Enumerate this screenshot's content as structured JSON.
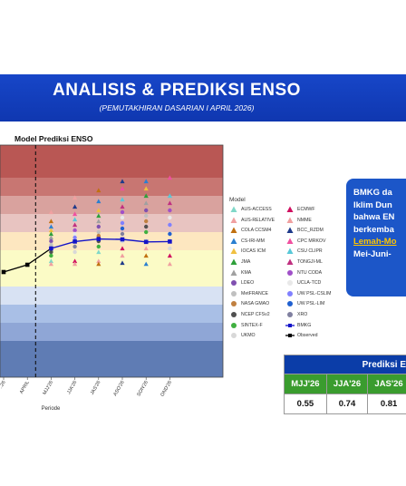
{
  "banner": {
    "title": "ANALISIS & PREDIKSI ENSO",
    "subtitle": "(PEMUTAKHIRAN DASARIAN I APRIL 2026)"
  },
  "chart_title": "Model Prediksi ENSO",
  "chart_data": {
    "type": "line",
    "categories": [
      "..26",
      "APRIL",
      "MJJ'26",
      "JJA'26",
      "JAS'26",
      "ASO'26",
      "SON'26",
      "OND'26"
    ],
    "xlabel": "Periode",
    "series": [
      {
        "name": "BMKG",
        "x": [
          "MJJ'26",
          "JJA'26",
          "JAS'26",
          "ASO'26",
          "SON'26",
          "OND'26"
        ],
        "values": [
          0.55,
          0.74,
          0.81,
          0.8,
          0.73,
          0.74
        ]
      },
      {
        "name": "Observed",
        "x": [
          "..26",
          "APRIL"
        ],
        "values": [
          -0.1,
          0.1
        ]
      }
    ],
    "ensemble_markers": [
      {
        "x": "MJJ'26",
        "values": [
          1.55,
          1.3,
          1.15,
          1.05,
          0.95,
          0.85,
          0.75,
          0.65,
          0.55,
          0.45,
          0.35,
          0.2,
          0.12
        ]
      },
      {
        "x": "JJA'26",
        "values": [
          1.95,
          1.7,
          1.5,
          1.35,
          1.2,
          1.05,
          0.95,
          0.85,
          0.75,
          0.6,
          0.45,
          0.2,
          0.12
        ]
      },
      {
        "x": "JAS'26",
        "values": [
          2.15,
          1.85,
          1.6,
          1.45,
          1.3,
          1.15,
          1.0,
          0.9,
          0.75,
          0.6,
          0.45,
          0.2,
          0.12
        ]
      },
      {
        "x": "ASO'26",
        "values": [
          2.4,
          2.2,
          1.9,
          1.7,
          1.55,
          1.4,
          1.25,
          1.1,
          0.95,
          0.75,
          0.55,
          0.35,
          0.15
        ]
      },
      {
        "x": "SON'26",
        "values": [
          2.4,
          2.2,
          2.0,
          1.8,
          1.6,
          1.45,
          1.3,
          1.15,
          1.0,
          0.75,
          0.55,
          0.35,
          0.12
        ]
      },
      {
        "x": "OND'26",
        "values": [
          2.5,
          2.0,
          1.8,
          1.6,
          1.4,
          1.2,
          0.95,
          0.75,
          0.55,
          0.35,
          0.12
        ]
      }
    ],
    "ylim": [
      -3.0,
      3.4
    ],
    "bands": [
      {
        "from": 2.5,
        "to": 3.4,
        "color": "#b95754"
      },
      {
        "from": 2.0,
        "to": 2.5,
        "color": "#c87672"
      },
      {
        "from": 1.5,
        "to": 2.0,
        "color": "#d9a29e"
      },
      {
        "from": 1.0,
        "to": 1.5,
        "color": "#e8c4c1"
      },
      {
        "from": 0.5,
        "to": 1.0,
        "color": "#fde7c0"
      },
      {
        "from": -0.5,
        "to": 0.5,
        "color": "#fbfbc6"
      },
      {
        "from": -1.0,
        "to": -0.5,
        "color": "#d8e2f3"
      },
      {
        "from": -1.5,
        "to": -1.0,
        "color": "#a9bfe6"
      },
      {
        "from": -2.0,
        "to": -1.5,
        "color": "#8fa6d6"
      },
      {
        "from": -3.0,
        "to": -2.0,
        "color": "#5f7cb4"
      }
    ],
    "legend_position": "right"
  },
  "legend": {
    "heading": "Model",
    "items": [
      {
        "label": "AUS-ACCESS",
        "shape": "triangle",
        "color": "#80d8c8"
      },
      {
        "label": "ECMWF",
        "shape": "triangle",
        "color": "#d01060"
      },
      {
        "label": "AUS-RELATIVE",
        "shape": "triangle",
        "color": "#f0a0a0"
      },
      {
        "label": "NMME",
        "shape": "triangle",
        "color": "#f0a0a0"
      },
      {
        "label": "COLA CCSM4",
        "shape": "triangle",
        "color": "#c07010"
      },
      {
        "label": "BCC_RZDM",
        "shape": "triangle",
        "color": "#1e3a8a"
      },
      {
        "label": "CS-IRI-MM",
        "shape": "triangle",
        "color": "#2a7fd0"
      },
      {
        "label": "CPC MRKOV",
        "shape": "triangle",
        "color": "#f050a0"
      },
      {
        "label": "IOCAS ICM",
        "shape": "triangle",
        "color": "#f0c040"
      },
      {
        "label": "CSU CLIPR",
        "shape": "triangle",
        "color": "#58c8d8"
      },
      {
        "label": "JMA",
        "shape": "triangle",
        "color": "#2ea03a"
      },
      {
        "label": "TONGJI-ML",
        "shape": "triangle",
        "color": "#c03080"
      },
      {
        "label": "KMA",
        "shape": "triangle",
        "color": "#a0a0a0"
      },
      {
        "label": "NTU CODA",
        "shape": "circle",
        "color": "#a050c8"
      },
      {
        "label": "LDEO",
        "shape": "circle",
        "color": "#8050b0"
      },
      {
        "label": "UCLA-TCD",
        "shape": "circle",
        "color": "#e8e8e8"
      },
      {
        "label": "MetFRANCE",
        "shape": "circle",
        "color": "#c0c0c0"
      },
      {
        "label": "UW PSL-CSLIM",
        "shape": "circle",
        "color": "#8080ff"
      },
      {
        "label": "NASA GMAO",
        "shape": "circle",
        "color": "#c08040"
      },
      {
        "label": "UW PSL-LIM",
        "shape": "circle",
        "color": "#2060d0"
      },
      {
        "label": "NCEP CFSv2",
        "shape": "circle",
        "color": "#505050"
      },
      {
        "label": "XRO",
        "shape": "circle",
        "color": "#8080a0"
      },
      {
        "label": "SINTEX-F",
        "shape": "circle",
        "color": "#40b040"
      },
      {
        "label": "BMKG",
        "shape": "line-square",
        "color": "#1414c8"
      },
      {
        "label": "UKMO",
        "shape": "circle",
        "color": "#d8d8d8"
      },
      {
        "label": "Observed",
        "shape": "line-square",
        "color": "#000000"
      }
    ]
  },
  "callout": {
    "lines": [
      "BMKG da",
      "Iklim Dun",
      "bahwa EN",
      "berkemba",
      "Lemah-Mo",
      "Mei-Juni-"
    ]
  },
  "prediction_table": {
    "header": "Prediksi E",
    "periods": [
      "MJJ'26",
      "JJA'26",
      "JAS'26"
    ],
    "values": [
      "0.55",
      "0.74",
      "0.81"
    ]
  },
  "colors": {
    "banner": "#1746c8",
    "callout": "#1c56c8",
    "highlight": "#ffc400",
    "table_header": "#0b3da8",
    "table_period": "#3a9c2e"
  }
}
